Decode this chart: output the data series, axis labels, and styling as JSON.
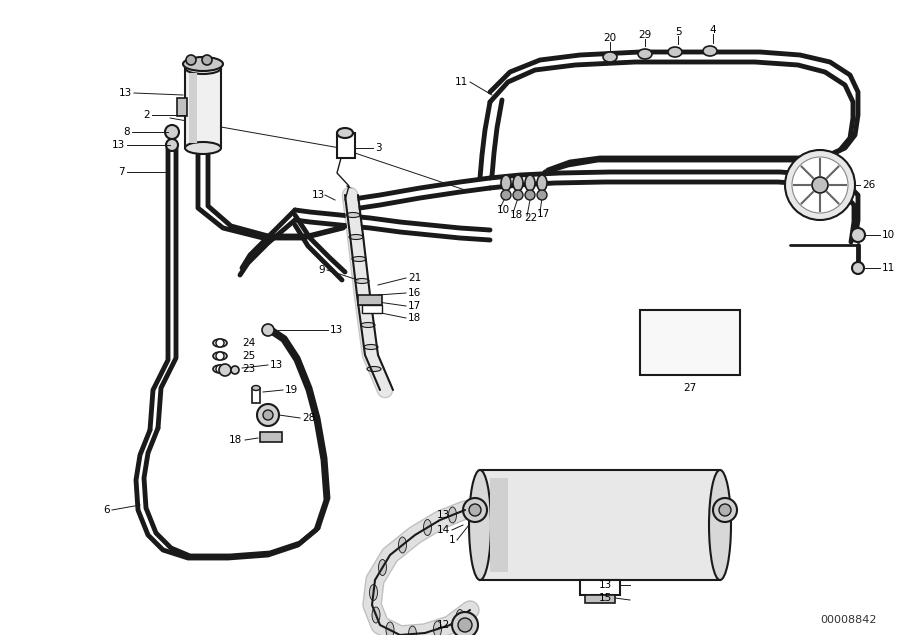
{
  "bg_color": "#ffffff",
  "lc": "#1a1a1a",
  "diagram_id": "00008842",
  "fig_width": 9.0,
  "fig_height": 6.35,
  "dpi": 100
}
